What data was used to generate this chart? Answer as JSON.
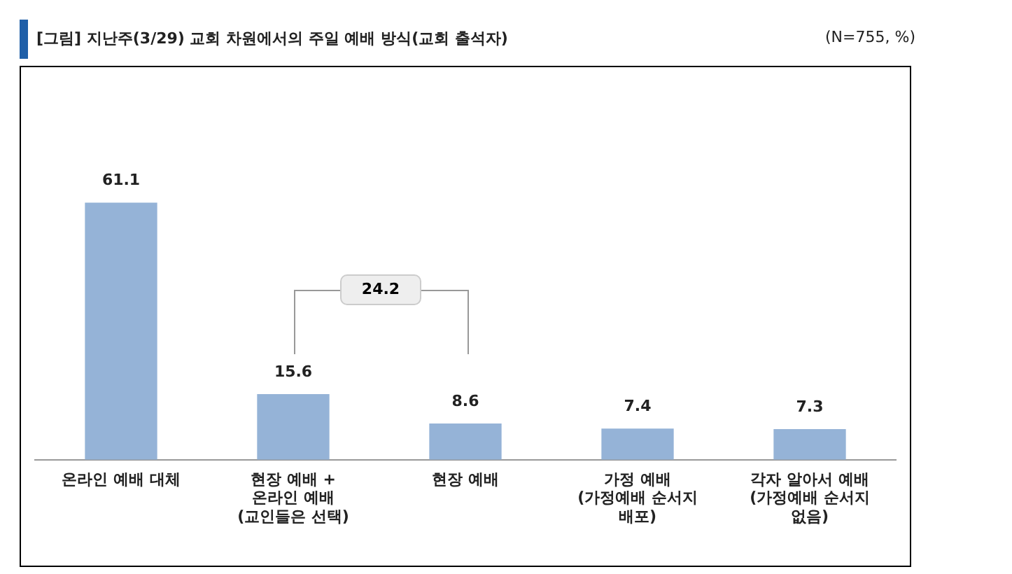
{
  "chart_data": {
    "type": "bar",
    "title": "[그림] 지난주(3/29) 교회 차원에서의 주일 예배 방식(교회 출석자)",
    "subtitle": "(N=755, %)",
    "categories": [
      "온라인 예배 대체",
      "현장 예배 +\n온라인 예배\n(교인들은 선택)",
      "현장 예배",
      "가정 예배\n(가정예배 순서지\n배포)",
      "각자 알아서 예배\n(가정예배 순서지\n없음)"
    ],
    "values": [
      61.1,
      15.6,
      8.6,
      7.4,
      7.3
    ],
    "color": "#95b3d7",
    "data_labels": true,
    "grid": false,
    "legend": false,
    "annotations": [
      "24.2"
    ]
  }
}
